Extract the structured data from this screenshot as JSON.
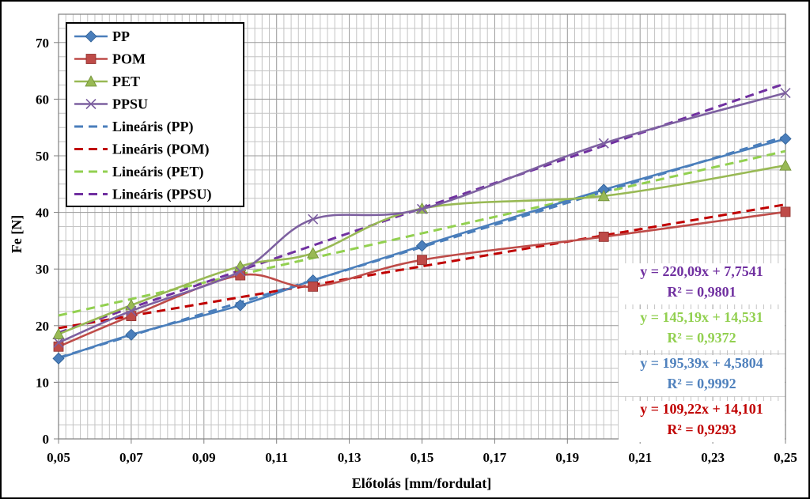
{
  "chart_data": {
    "type": "line",
    "xlabel": "Előtolás [mm/fordulat]",
    "ylabel": "Fe [N]",
    "xlim": [
      0.05,
      0.25
    ],
    "ylim": [
      0,
      75
    ],
    "x_ticks": [
      "0,05",
      "0,07",
      "0,09",
      "0,11",
      "0,13",
      "0,15",
      "0,17",
      "0,19",
      "0,21",
      "0,23",
      "0,25"
    ],
    "y_ticks": [
      "0",
      "10",
      "20",
      "30",
      "40",
      "50",
      "60",
      "70"
    ],
    "grid": true,
    "legend_position": "top-left",
    "x": [
      0.05,
      0.07,
      0.1,
      0.12,
      0.15,
      0.2,
      0.25
    ],
    "series": [
      {
        "name": "PP",
        "values": [
          14.2,
          18.4,
          23.6,
          28.0,
          34.1,
          44.0,
          53.0
        ],
        "color": "#4a7ebb",
        "marker": "diamond"
      },
      {
        "name": "POM",
        "values": [
          16.3,
          21.7,
          28.9,
          26.9,
          31.6,
          35.7,
          40.1
        ],
        "color": "#be4b48",
        "marker": "square"
      },
      {
        "name": "PET",
        "values": [
          18.5,
          23.6,
          30.5,
          32.8,
          40.7,
          42.9,
          48.3
        ],
        "color": "#98b954",
        "marker": "triangle"
      },
      {
        "name": "PPSU",
        "values": [
          17.0,
          22.6,
          29.6,
          38.8,
          40.6,
          52.2,
          61.1
        ],
        "color": "#7d60a0",
        "marker": "x"
      }
    ],
    "trendlines": [
      {
        "name": "Lineáris (PP)",
        "slope": 195.39,
        "intercept": 4.5804,
        "color": "#4a7ebb"
      },
      {
        "name": "Lineáris (POM)",
        "slope": 109.22,
        "intercept": 14.101,
        "color": "#c00000"
      },
      {
        "name": "Lineáris (PET)",
        "slope": 145.19,
        "intercept": 14.531,
        "color": "#92d050"
      },
      {
        "name": "Lineáris (PPSU)",
        "slope": 220.09,
        "intercept": 7.7541,
        "color": "#7030a0"
      }
    ],
    "equations": [
      {
        "eq": "y = 220,09x + 7,7541",
        "r2": "R² = 0,9801",
        "color": "#7030a0"
      },
      {
        "eq": "y = 145,19x + 14,531",
        "r2": "R² = 0,9372",
        "color": "#92d050"
      },
      {
        "eq": "y = 195,39x + 4,5804",
        "r2": "R² = 0,9992",
        "color": "#4f81bd"
      },
      {
        "eq": "y = 109,22x + 14,101",
        "r2": "R² = 0,9293",
        "color": "#c00000"
      }
    ]
  }
}
